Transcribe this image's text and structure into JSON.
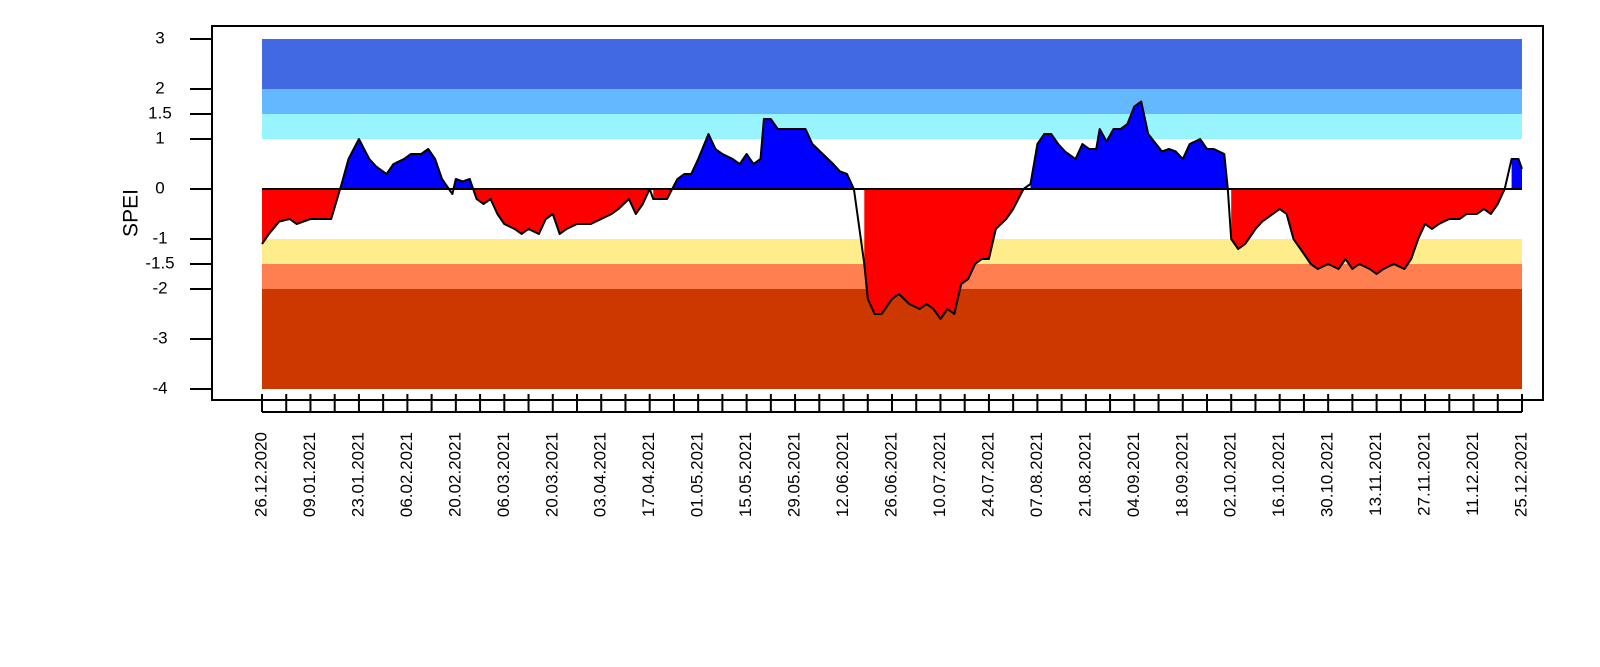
{
  "chart_data": {
    "type": "area",
    "ylabel": "SPEI",
    "ylim": [
      -4,
      3
    ],
    "xlim": [
      "2020-12-26",
      "2021-12-25"
    ],
    "y_ticks": [
      {
        "value": 3,
        "label": "3"
      },
      {
        "value": 2,
        "label": "2"
      },
      {
        "value": 1.5,
        "label": "1.5"
      },
      {
        "value": 1,
        "label": "1"
      },
      {
        "value": 0,
        "label": "0"
      },
      {
        "value": -1,
        "label": "-1"
      },
      {
        "value": -1.5,
        "label": "-1.5"
      },
      {
        "value": -2,
        "label": "-2"
      },
      {
        "value": -3,
        "label": "-3"
      },
      {
        "value": -4,
        "label": "-4"
      }
    ],
    "x_tick_labels": [
      "26.12.2020",
      "09.01.2021",
      "23.01.2021",
      "06.02.2021",
      "20.02.2021",
      "06.03.2021",
      "20.03.2021",
      "03.04.2021",
      "17.04.2021",
      "01.05.2021",
      "15.05.2021",
      "29.05.2021",
      "12.06.2021",
      "26.06.2021",
      "10.07.2021",
      "24.07.2021",
      "07.08.2021",
      "21.08.2021",
      "04.09.2021",
      "18.09.2021",
      "02.10.2021",
      "16.10.2021",
      "30.10.2021",
      "13.11.2021",
      "27.11.2021",
      "11.12.2021",
      "25.12.2021"
    ],
    "x_tick_interval_days": 7,
    "x_label_interval_days": 14,
    "bands": [
      {
        "from": 2,
        "to": 3,
        "color": "#4169e1"
      },
      {
        "from": 1.5,
        "to": 2,
        "color": "#63b8ff"
      },
      {
        "from": 1,
        "to": 1.5,
        "color": "#98f5ff"
      },
      {
        "from": -1.5,
        "to": -1,
        "color": "#ffec8b"
      },
      {
        "from": -2,
        "to": -1.5,
        "color": "#ff7f50"
      },
      {
        "from": -4,
        "to": -2,
        "color": "#cd3700"
      }
    ],
    "positive_fill": "#0000ff",
    "negative_fill": "#ff0000",
    "series": [
      {
        "points": [
          [
            "2020-12-26",
            -1.1
          ],
          [
            "2020-12-28",
            -0.9
          ],
          [
            "2020-12-31",
            -0.65
          ],
          [
            "2021-01-03",
            -0.6
          ],
          [
            "2021-01-05",
            -0.7
          ],
          [
            "2021-01-09",
            -0.6
          ],
          [
            "2021-01-15",
            -0.6
          ],
          [
            "2021-01-18",
            0.1
          ],
          [
            "2021-01-20",
            0.6
          ],
          [
            "2021-01-23",
            1.0
          ],
          [
            "2021-01-26",
            0.6
          ],
          [
            "2021-01-28",
            0.45
          ],
          [
            "2021-01-31",
            0.3
          ],
          [
            "2021-02-02",
            0.5
          ],
          [
            "2021-02-05",
            0.6
          ],
          [
            "2021-02-07",
            0.7
          ],
          [
            "2021-02-10",
            0.7
          ],
          [
            "2021-02-12",
            0.8
          ],
          [
            "2021-02-14",
            0.6
          ],
          [
            "2021-02-16",
            0.2
          ],
          [
            "2021-02-18",
            0.0
          ],
          [
            "2021-02-19",
            -0.1
          ],
          [
            "2021-02-20",
            0.2
          ],
          [
            "2021-02-22",
            0.15
          ],
          [
            "2021-02-24",
            0.2
          ],
          [
            "2021-02-26",
            -0.2
          ],
          [
            "2021-02-28",
            -0.3
          ],
          [
            "2021-03-02",
            -0.2
          ],
          [
            "2021-03-04",
            -0.5
          ],
          [
            "2021-03-06",
            -0.7
          ],
          [
            "2021-03-09",
            -0.8
          ],
          [
            "2021-03-11",
            -0.9
          ],
          [
            "2021-03-13",
            -0.8
          ],
          [
            "2021-03-16",
            -0.9
          ],
          [
            "2021-03-18",
            -0.6
          ],
          [
            "2021-03-20",
            -0.5
          ],
          [
            "2021-03-22",
            -0.9
          ],
          [
            "2021-03-24",
            -0.8
          ],
          [
            "2021-03-27",
            -0.7
          ],
          [
            "2021-03-31",
            -0.7
          ],
          [
            "2021-04-03",
            -0.6
          ],
          [
            "2021-04-06",
            -0.5
          ],
          [
            "2021-04-08",
            -0.4
          ],
          [
            "2021-04-11",
            -0.2
          ],
          [
            "2021-04-13",
            -0.5
          ],
          [
            "2021-04-15",
            -0.3
          ],
          [
            "2021-04-17",
            0.0
          ],
          [
            "2021-04-18",
            -0.2
          ],
          [
            "2021-04-22",
            -0.2
          ],
          [
            "2021-04-25",
            0.2
          ],
          [
            "2021-04-27",
            0.3
          ],
          [
            "2021-04-29",
            0.3
          ],
          [
            "2021-05-01",
            0.6
          ],
          [
            "2021-05-04",
            1.1
          ],
          [
            "2021-05-06",
            0.8
          ],
          [
            "2021-05-08",
            0.7
          ],
          [
            "2021-05-11",
            0.6
          ],
          [
            "2021-05-13",
            0.5
          ],
          [
            "2021-05-15",
            0.7
          ],
          [
            "2021-05-17",
            0.5
          ],
          [
            "2021-05-19",
            0.6
          ],
          [
            "2021-05-20",
            1.4
          ],
          [
            "2021-05-22",
            1.4
          ],
          [
            "2021-05-24",
            1.2
          ],
          [
            "2021-05-29",
            1.2
          ],
          [
            "2021-06-01",
            1.2
          ],
          [
            "2021-06-03",
            0.9
          ],
          [
            "2021-06-06",
            0.7
          ],
          [
            "2021-06-09",
            0.5
          ],
          [
            "2021-06-11",
            0.35
          ],
          [
            "2021-06-13",
            0.3
          ],
          [
            "2021-06-15",
            0.0
          ],
          [
            "2021-06-18",
            -1.5
          ],
          [
            "2021-06-19",
            -2.2
          ],
          [
            "2021-06-21",
            -2.5
          ],
          [
            "2021-06-23",
            -2.5
          ],
          [
            "2021-06-25",
            -2.3
          ],
          [
            "2021-06-26",
            -2.2
          ],
          [
            "2021-06-28",
            -2.1
          ],
          [
            "2021-07-01",
            -2.3
          ],
          [
            "2021-07-04",
            -2.4
          ],
          [
            "2021-07-06",
            -2.3
          ],
          [
            "2021-07-08",
            -2.4
          ],
          [
            "2021-07-10",
            -2.6
          ],
          [
            "2021-07-12",
            -2.4
          ],
          [
            "2021-07-14",
            -2.5
          ],
          [
            "2021-07-16",
            -1.9
          ],
          [
            "2021-07-18",
            -1.8
          ],
          [
            "2021-07-20",
            -1.5
          ],
          [
            "2021-07-22",
            -1.4
          ],
          [
            "2021-07-24",
            -1.4
          ],
          [
            "2021-07-26",
            -0.8
          ],
          [
            "2021-07-29",
            -0.6
          ],
          [
            "2021-07-31",
            -0.4
          ],
          [
            "2021-08-03",
            0.0
          ],
          [
            "2021-08-05",
            0.1
          ],
          [
            "2021-08-07",
            0.9
          ],
          [
            "2021-08-09",
            1.1
          ],
          [
            "2021-08-11",
            1.1
          ],
          [
            "2021-08-13",
            0.9
          ],
          [
            "2021-08-15",
            0.75
          ],
          [
            "2021-08-18",
            0.6
          ],
          [
            "2021-08-20",
            0.9
          ],
          [
            "2021-08-22",
            0.8
          ],
          [
            "2021-08-24",
            0.8
          ],
          [
            "2021-08-25",
            1.2
          ],
          [
            "2021-08-27",
            0.95
          ],
          [
            "2021-08-29",
            1.2
          ],
          [
            "2021-08-31",
            1.2
          ],
          [
            "2021-09-02",
            1.3
          ],
          [
            "2021-09-04",
            1.65
          ],
          [
            "2021-09-06",
            1.75
          ],
          [
            "2021-09-08",
            1.1
          ],
          [
            "2021-09-12",
            0.75
          ],
          [
            "2021-09-14",
            0.8
          ],
          [
            "2021-09-16",
            0.75
          ],
          [
            "2021-09-18",
            0.6
          ],
          [
            "2021-09-20",
            0.9
          ],
          [
            "2021-09-23",
            1.0
          ],
          [
            "2021-09-25",
            0.8
          ],
          [
            "2021-09-27",
            0.8
          ],
          [
            "2021-09-30",
            0.7
          ],
          [
            "2021-10-01",
            0.0
          ],
          [
            "2021-10-02",
            -1.0
          ],
          [
            "2021-10-04",
            -1.2
          ],
          [
            "2021-10-06",
            -1.1
          ],
          [
            "2021-10-09",
            -0.8
          ],
          [
            "2021-10-11",
            -0.65
          ],
          [
            "2021-10-14",
            -0.5
          ],
          [
            "2021-10-16",
            -0.4
          ],
          [
            "2021-10-18",
            -0.5
          ],
          [
            "2021-10-20",
            -1.0
          ],
          [
            "2021-10-22",
            -1.2
          ],
          [
            "2021-10-25",
            -1.5
          ],
          [
            "2021-10-27",
            -1.6
          ],
          [
            "2021-10-30",
            -1.5
          ],
          [
            "2021-11-02",
            -1.6
          ],
          [
            "2021-11-04",
            -1.4
          ],
          [
            "2021-11-06",
            -1.6
          ],
          [
            "2021-11-08",
            -1.5
          ],
          [
            "2021-11-11",
            -1.6
          ],
          [
            "2021-11-13",
            -1.7
          ],
          [
            "2021-11-15",
            -1.6
          ],
          [
            "2021-11-18",
            -1.5
          ],
          [
            "2021-11-21",
            -1.6
          ],
          [
            "2021-11-23",
            -1.4
          ],
          [
            "2021-11-25",
            -1.0
          ],
          [
            "2021-11-27",
            -0.7
          ],
          [
            "2021-11-29",
            -0.8
          ],
          [
            "2021-12-01",
            -0.7
          ],
          [
            "2021-12-04",
            -0.6
          ],
          [
            "2021-12-07",
            -0.6
          ],
          [
            "2021-12-09",
            -0.5
          ],
          [
            "2021-12-12",
            -0.5
          ],
          [
            "2021-12-14",
            -0.4
          ],
          [
            "2021-12-16",
            -0.5
          ],
          [
            "2021-12-18",
            -0.3
          ],
          [
            "2021-12-20",
            0.0
          ],
          [
            "2021-12-22",
            0.6
          ],
          [
            "2021-12-24",
            0.6
          ],
          [
            "2021-12-25",
            0.4
          ]
        ]
      }
    ]
  }
}
